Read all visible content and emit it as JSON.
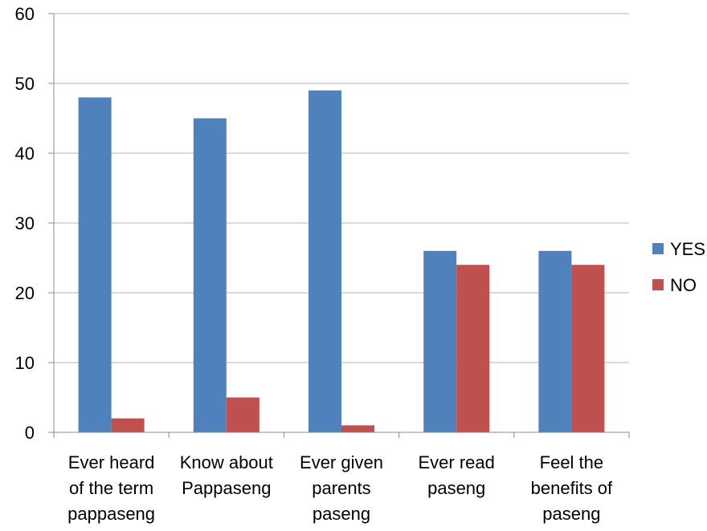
{
  "chart_data": {
    "type": "bar",
    "title": "",
    "xlabel": "",
    "ylabel": "",
    "ylim": [
      0,
      60
    ],
    "yticks": [
      0,
      10,
      20,
      30,
      40,
      50,
      60
    ],
    "grid": true,
    "legend_position": "right",
    "categories": [
      [
        "Ever  heard",
        "of the term",
        "pappaseng"
      ],
      [
        "Know about",
        "Pappaseng"
      ],
      [
        "Ever given",
        "parents",
        "paseng"
      ],
      [
        "Ever read",
        "paseng"
      ],
      [
        "Feel the",
        "benefits of",
        "paseng"
      ]
    ],
    "series": [
      {
        "name": "YES",
        "color": "#4f81bd",
        "values": [
          48,
          45,
          49,
          26,
          26
        ]
      },
      {
        "name": "NO",
        "color": "#c0504d",
        "values": [
          2,
          5,
          1,
          24,
          24
        ]
      }
    ]
  }
}
